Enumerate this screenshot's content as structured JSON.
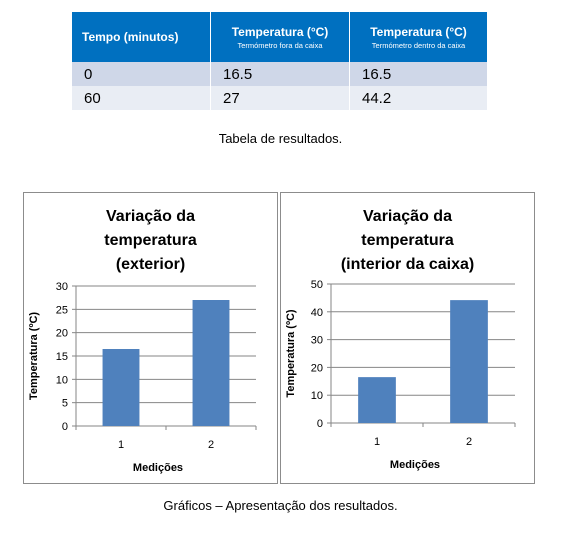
{
  "table": {
    "headers": [
      {
        "main": "Tempo (minutos)",
        "sub": ""
      },
      {
        "main": "Temperatura (°C)",
        "sub": "Termómetro fora da caixa"
      },
      {
        "main": "Temperatura (°C)",
        "sub": "Termómetro dentro da caixa"
      }
    ],
    "rows": [
      [
        "0",
        "16.5",
        "16.5"
      ],
      [
        "60",
        "27",
        "44.2"
      ]
    ],
    "colors": {
      "header_bg": "#0070c0",
      "row1_bg": "#cfd7e8",
      "row2_bg": "#e9edf4"
    }
  },
  "captions": {
    "table": "Tabela de resultados.",
    "charts": "Gráficos – Apresentação dos resultados."
  },
  "chart_data": [
    {
      "type": "bar",
      "title_lines": [
        "Variação da",
        "temperatura",
        "(exterior)"
      ],
      "categories": [
        "1",
        "2"
      ],
      "values": [
        16.5,
        27
      ],
      "xlabel": "Medições",
      "ylabel": "Temperatura (ºC)",
      "ylim": [
        0,
        30
      ],
      "yticks": [
        0,
        5,
        10,
        15,
        20,
        25,
        30
      ],
      "grid": true,
      "legend": "none",
      "bar_color": "#4f81bd"
    },
    {
      "type": "bar",
      "title_lines": [
        "Variação da",
        "temperatura",
        "(interior da caixa)"
      ],
      "categories": [
        "1",
        "2"
      ],
      "values": [
        16.5,
        44.2
      ],
      "xlabel": "Medições",
      "ylabel": "Temperatura (ºC)",
      "ylim": [
        0,
        50
      ],
      "yticks": [
        0,
        10,
        20,
        30,
        40,
        50
      ],
      "grid": true,
      "legend": "none",
      "bar_color": "#4f81bd"
    }
  ]
}
